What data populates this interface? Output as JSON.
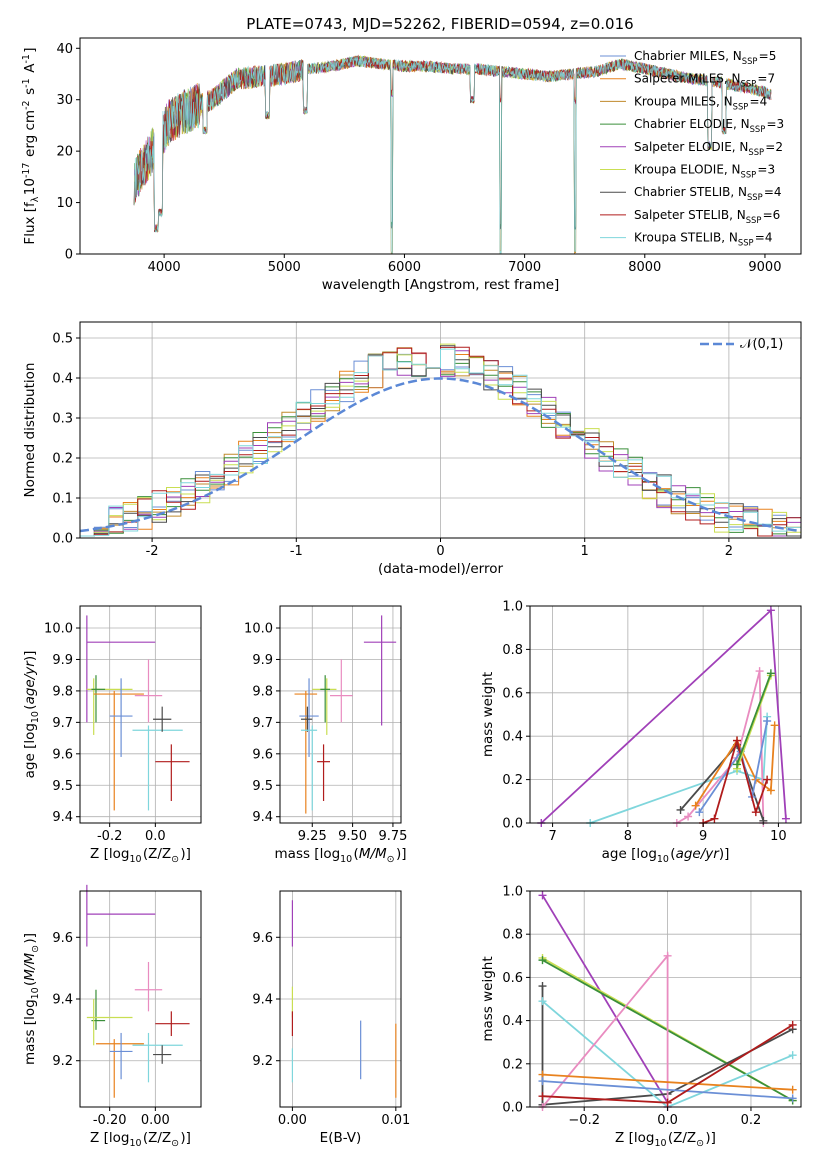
{
  "figure": {
    "title": "PLATE=0743, MJD=52262, FIBERID=0594, z=0.016"
  },
  "colors": {
    "Chabrier MILES": "#6b8fd6",
    "Salpeter MILES": "#e8821e",
    "Kroupa MILES": "#c08a2c",
    "Chabrier ELODIE": "#3a8f3a",
    "Salpeter ELODIE": "#a040b8",
    "Kroupa ELODIE": "#c9de52",
    "Chabrier STELIB": "#4a4a4a",
    "Salpeter STELIB": "#b01c1c",
    "Kroupa STELIB": "#7fd6dc",
    "Pink": "#e98cc0",
    "Gauss": "#5b88d6"
  },
  "chart_data": [
    {
      "id": "spectrum",
      "type": "line",
      "title": "PLATE=0743, MJD=52262, FIBERID=0594, z=0.016",
      "xlabel": "wavelength [Angstrom, rest frame]",
      "ylabel": "Flux [f$_\\lambda$10$^{-17}$ erg cm$^{-2}$ s$^{-1}$ A$^{-1}$]",
      "xlim": [
        3300,
        9300
      ],
      "ylim": [
        0,
        42
      ],
      "xticks": [
        4000,
        5000,
        6000,
        7000,
        8000,
        9000
      ],
      "yticks": [
        0,
        10,
        20,
        30,
        40
      ],
      "grid": false,
      "legend_position": "upper-right",
      "continuum": {
        "x": [
          3750,
          3850,
          3950,
          4050,
          4200,
          4400,
          4600,
          4800,
          5000,
          5200,
          5400,
          5600,
          5800,
          6000,
          6200,
          6400,
          6600,
          6800,
          7000,
          7200,
          7400,
          7600,
          7800,
          8000,
          8200,
          8400,
          8600,
          8800,
          9000,
          9050
        ],
        "y": [
          14,
          18,
          22,
          26,
          28,
          30,
          34,
          34.5,
          35,
          36,
          36.5,
          37.5,
          37,
          36.5,
          36.5,
          36,
          36,
          35.5,
          35,
          34.5,
          35,
          35.5,
          37,
          36,
          35,
          34,
          33.5,
          32.5,
          31.5,
          31
        ]
      },
      "absorption_dips": [
        {
          "x": 3935,
          "y": 5
        },
        {
          "x": 3970,
          "y": 8
        },
        {
          "x": 4340,
          "y": 24
        },
        {
          "x": 4860,
          "y": 27
        },
        {
          "x": 5175,
          "y": 28
        },
        {
          "x": 5895,
          "y": 0
        },
        {
          "x": 6565,
          "y": 30
        },
        {
          "x": 6800,
          "y": 0
        },
        {
          "x": 7420,
          "y": 0
        },
        {
          "x": 8542,
          "y": 21
        },
        {
          "x": 8662,
          "y": 24
        }
      ],
      "series": [
        {
          "name": "Chabrier MILES, N$_{SSP}$=5"
        },
        {
          "name": "Salpeter MILES, N$_{SSP}$=7"
        },
        {
          "name": "Kroupa MILES, N$_{SSP}$=4"
        },
        {
          "name": "Chabrier ELODIE, N$_{SSP}$=3"
        },
        {
          "name": "Salpeter ELODIE, N$_{SSP}$=2"
        },
        {
          "name": "Kroupa ELODIE, N$_{SSP}$=3"
        },
        {
          "name": "Chabrier STELIB, N$_{SSP}$=4"
        },
        {
          "name": "Salpeter STELIB, N$_{SSP}$=6"
        },
        {
          "name": "Kroupa STELIB, N$_{SSP}$=4"
        }
      ]
    },
    {
      "id": "residuals",
      "type": "line",
      "xlabel": "(data-model)/error",
      "ylabel": "Normed distribution",
      "xlim": [
        -2.5,
        2.5
      ],
      "ylim": [
        0,
        0.54
      ],
      "xticks": [
        -2,
        -1,
        0,
        1,
        2
      ],
      "yticks": [
        0.0,
        0.1,
        0.2,
        0.3,
        0.4,
        0.5
      ],
      "grid": true,
      "legend": "$\\mathcal{N}(0,1)$",
      "legend_position": "upper-right",
      "gaussian": {
        "mean": 0,
        "sigma": 1
      }
    },
    {
      "id": "age-vs-Z",
      "type": "scatter",
      "xlabel": "Z [log$_{10}$(Z/Z$_\\odot$)]",
      "ylabel": "age  [log$_{10}$($age/yr$)]",
      "xlim": [
        -0.33,
        0.2
      ],
      "ylim": [
        9.38,
        10.07
      ],
      "xticks": [
        -0.2,
        0.0
      ],
      "yticks": [
        9.4,
        9.5,
        9.6,
        9.7,
        9.8,
        9.9,
        10.0
      ],
      "grid": true,
      "points": [
        {
          "c": "Salpeter ELODIE",
          "x": -0.3,
          "y": 9.955,
          "xe": [
            -0.3,
            0.0
          ],
          "ye": [
            9.7,
            10.04
          ]
        },
        {
          "c": "Kroupa ELODIE",
          "x": -0.27,
          "y": 9.805,
          "xe": [
            -0.3,
            -0.1
          ],
          "ye": [
            9.66,
            9.84
          ]
        },
        {
          "c": "Chabrier ELODIE",
          "x": -0.26,
          "y": 9.805,
          "xe": [
            -0.28,
            -0.22
          ],
          "ye": [
            9.7,
            9.85
          ]
        },
        {
          "c": "Salpeter MILES",
          "x": -0.18,
          "y": 9.79,
          "xe": [
            -0.27,
            -0.05
          ],
          "ye": [
            9.42,
            9.8
          ]
        },
        {
          "c": "Chabrier MILES",
          "x": -0.15,
          "y": 9.72,
          "xe": [
            -0.2,
            -0.1
          ],
          "ye": [
            9.59,
            9.84
          ]
        },
        {
          "c": "Pink",
          "x": -0.03,
          "y": 9.785,
          "xe": [
            -0.09,
            0.03
          ],
          "ye": [
            9.7,
            9.9
          ]
        },
        {
          "c": "Kroupa STELIB",
          "x": -0.03,
          "y": 9.675,
          "xe": [
            -0.1,
            0.12
          ],
          "ye": [
            9.42,
            9.69
          ]
        },
        {
          "c": "Chabrier STELIB",
          "x": 0.03,
          "y": 9.71,
          "xe": [
            -0.01,
            0.07
          ],
          "ye": [
            9.67,
            9.75
          ]
        },
        {
          "c": "Salpeter STELIB",
          "x": 0.07,
          "y": 9.575,
          "xe": [
            0.0,
            0.15
          ],
          "ye": [
            9.45,
            9.63
          ]
        }
      ]
    },
    {
      "id": "age-vs-mass",
      "type": "scatter",
      "xlabel": "mass [log$_{10}$($M/M_\\odot$)]",
      "ylabel": "",
      "xlim": [
        9.05,
        9.8
      ],
      "ylim": [
        9.38,
        10.07
      ],
      "xticks": [
        9.25,
        9.5,
        9.75
      ],
      "yticks": [
        9.4,
        9.5,
        9.6,
        9.7,
        9.8,
        9.9,
        10.0
      ],
      "grid": true,
      "points": [
        {
          "c": "Salpeter ELODIE",
          "x": 9.68,
          "y": 9.955,
          "xe": [
            9.57,
            9.77
          ],
          "ye": [
            9.69,
            10.04
          ]
        },
        {
          "c": "Salpeter MILES",
          "x": 9.21,
          "y": 9.79,
          "xe": [
            9.14,
            9.28
          ],
          "ye": [
            9.41,
            9.8
          ]
        },
        {
          "c": "Kroupa ELODIE",
          "x": 9.34,
          "y": 9.805,
          "xe": [
            9.25,
            9.4
          ],
          "ye": [
            9.66,
            9.84
          ]
        },
        {
          "c": "Chabrier ELODIE",
          "x": 9.33,
          "y": 9.805,
          "xe": [
            9.3,
            9.36
          ],
          "ye": [
            9.7,
            9.85
          ]
        },
        {
          "c": "Pink",
          "x": 9.43,
          "y": 9.785,
          "xe": [
            9.36,
            9.5
          ],
          "ye": [
            9.7,
            9.9
          ]
        },
        {
          "c": "Chabrier MILES",
          "x": 9.23,
          "y": 9.72,
          "xe": [
            9.17,
            9.29
          ],
          "ye": [
            9.59,
            9.84
          ]
        },
        {
          "c": "Chabrier STELIB",
          "x": 9.22,
          "y": 9.71,
          "xe": [
            9.18,
            9.25
          ],
          "ye": [
            9.67,
            9.75
          ]
        },
        {
          "c": "Kroupa STELIB",
          "x": 9.25,
          "y": 9.675,
          "xe": [
            9.18,
            9.28
          ],
          "ye": [
            9.42,
            9.69
          ]
        },
        {
          "c": "Salpeter STELIB",
          "x": 9.32,
          "y": 9.575,
          "xe": [
            9.28,
            9.36
          ],
          "ye": [
            9.45,
            9.63
          ]
        }
      ]
    },
    {
      "id": "weight-vs-age",
      "type": "line",
      "xlabel": "age  [log$_{10}$($age/yr$)]",
      "ylabel": "mass weight",
      "xlim": [
        6.7,
        10.3
      ],
      "ylim": [
        0,
        1.0
      ],
      "xticks": [
        7,
        8,
        9,
        10
      ],
      "yticks": [
        0.0,
        0.2,
        0.4,
        0.6,
        0.8,
        1.0
      ],
      "grid": true,
      "series": [
        {
          "c": "Salpeter ELODIE",
          "x": [
            6.85,
            9.9,
            10.1
          ],
          "y": [
            0.0,
            0.98,
            0.02
          ]
        },
        {
          "c": "Kroupa STELIB",
          "x": [
            7.5,
            9.45,
            9.8,
            9.85
          ],
          "y": [
            0.0,
            0.24,
            0.2,
            0.49
          ]
        },
        {
          "c": "Pink",
          "x": [
            8.65,
            8.8,
            9.45,
            9.75,
            9.8
          ],
          "y": [
            0.0,
            0.03,
            0.3,
            0.7,
            0.0
          ]
        },
        {
          "c": "Chabrier STELIB",
          "x": [
            8.7,
            9.45,
            9.8
          ],
          "y": [
            0.06,
            0.36,
            0.01
          ]
        },
        {
          "c": "Salpeter MILES",
          "x": [
            8.9,
            9.45,
            9.7,
            9.9,
            9.95
          ],
          "y": [
            0.08,
            0.38,
            0.2,
            0.15,
            0.45
          ]
        },
        {
          "c": "Chabrier MILES",
          "x": [
            8.95,
            9.5,
            9.65,
            9.85
          ],
          "y": [
            0.05,
            0.33,
            0.12,
            0.47
          ]
        },
        {
          "c": "Salpeter STELIB",
          "x": [
            9.0,
            9.15,
            9.45,
            9.7,
            9.85
          ],
          "y": [
            0.0,
            0.02,
            0.38,
            0.05,
            0.2
          ]
        },
        {
          "c": "Kroupa ELODIE",
          "x": [
            9.45,
            9.9
          ],
          "y": [
            0.25,
            0.68
          ]
        },
        {
          "c": "Chabrier ELODIE",
          "x": [
            9.45,
            9.9
          ],
          "y": [
            0.27,
            0.69
          ]
        }
      ]
    },
    {
      "id": "mass-vs-Z",
      "type": "scatter",
      "xlabel": "Z [log$_{10}$(Z/Z$_\\odot$)]",
      "ylabel": "mass [log$_{10}$($M/M_\\odot$)]",
      "xlim": [
        -0.33,
        0.2
      ],
      "ylim": [
        9.05,
        9.75
      ],
      "xticks": [
        -0.2,
        0.0
      ],
      "yticks": [
        9.2,
        9.4,
        9.6
      ],
      "grid": true,
      "points": [
        {
          "c": "Salpeter ELODIE",
          "x": -0.3,
          "y": 9.675,
          "xe": [
            -0.3,
            0.0
          ],
          "ye": [
            9.57,
            9.77
          ]
        },
        {
          "c": "Pink",
          "x": -0.03,
          "y": 9.43,
          "xe": [
            -0.09,
            0.03
          ],
          "ye": [
            9.36,
            9.52
          ]
        },
        {
          "c": "Chabrier ELODIE",
          "x": -0.26,
          "y": 9.33,
          "xe": [
            -0.28,
            -0.22
          ],
          "ye": [
            9.3,
            9.43
          ]
        },
        {
          "c": "Kroupa ELODIE",
          "x": -0.27,
          "y": 9.34,
          "xe": [
            -0.3,
            -0.1
          ],
          "ye": [
            9.25,
            9.4
          ]
        },
        {
          "c": "Salpeter STELIB",
          "x": 0.07,
          "y": 9.32,
          "xe": [
            0.0,
            0.15
          ],
          "ye": [
            9.28,
            9.36
          ]
        },
        {
          "c": "Salpeter MILES",
          "x": -0.18,
          "y": 9.255,
          "xe": [
            -0.26,
            -0.05
          ],
          "ye": [
            9.08,
            9.27
          ]
        },
        {
          "c": "Kroupa STELIB",
          "x": -0.03,
          "y": 9.25,
          "xe": [
            -0.1,
            0.12
          ],
          "ye": [
            9.13,
            9.29
          ]
        },
        {
          "c": "Chabrier MILES",
          "x": -0.15,
          "y": 9.23,
          "xe": [
            -0.2,
            -0.1
          ],
          "ye": [
            9.14,
            9.29
          ]
        },
        {
          "c": "Chabrier STELIB",
          "x": 0.03,
          "y": 9.22,
          "xe": [
            -0.01,
            0.07
          ],
          "ye": [
            9.19,
            9.25
          ]
        }
      ]
    },
    {
      "id": "mass-vs-EBV",
      "type": "scatter",
      "xlabel": "E(B-V)",
      "ylabel": "",
      "xlim": [
        -0.0012,
        0.0105
      ],
      "ylim": [
        9.05,
        9.75
      ],
      "xticks": [
        0.0,
        0.01
      ],
      "xtick_labels": [
        "0.00",
        "0.01"
      ],
      "yticks": [
        9.2,
        9.4,
        9.6
      ],
      "grid": true,
      "points": [
        {
          "c": "Salpeter ELODIE",
          "x": 0.0,
          "y": 9.675,
          "ye": [
            9.57,
            9.72
          ]
        },
        {
          "c": "Kroupa ELODIE",
          "x": 0.0,
          "y": 9.4,
          "ye": [
            9.34,
            9.44
          ]
        },
        {
          "c": "Salpeter STELIB",
          "x": 0.0,
          "y": 9.32,
          "ye": [
            9.28,
            9.36
          ]
        },
        {
          "c": "Kroupa STELIB",
          "x": 0.0,
          "y": 9.2,
          "ye": [
            9.13,
            9.24
          ]
        },
        {
          "c": "Chabrier MILES",
          "x": 0.0066,
          "y": 9.23,
          "ye": [
            9.14,
            9.33
          ]
        },
        {
          "c": "Salpeter MILES",
          "x": 0.01,
          "y": 9.2,
          "ye": [
            9.08,
            9.32
          ]
        }
      ]
    },
    {
      "id": "weight-vs-Z",
      "type": "line",
      "xlabel": "Z [log$_{10}$(Z/Z$_\\odot$)]",
      "ylabel": "mass weight",
      "xlim": [
        -0.33,
        0.32
      ],
      "ylim": [
        0,
        1.0
      ],
      "xticks": [
        -0.2,
        0.0,
        0.2
      ],
      "yticks": [
        0.0,
        0.2,
        0.4,
        0.6,
        0.8,
        1.0
      ],
      "grid": true,
      "series": [
        {
          "c": "Salpeter ELODIE",
          "x": [
            -0.3,
            0.0
          ],
          "y": [
            0.98,
            0.02
          ]
        },
        {
          "c": "Kroupa ELODIE",
          "x": [
            -0.3,
            0.3
          ],
          "y": [
            0.69,
            0.03
          ]
        },
        {
          "c": "Chabrier ELODIE",
          "x": [
            -0.3,
            0.3
          ],
          "y": [
            0.68,
            0.03
          ]
        },
        {
          "c": "Chabrier STELIB",
          "x": [
            -0.3,
            -0.3,
            0.0,
            0.3
          ],
          "y": [
            0.56,
            0.01,
            0.06,
            0.36
          ]
        },
        {
          "c": "Kroupa STELIB",
          "x": [
            -0.3,
            0.0,
            0.3
          ],
          "y": [
            0.49,
            0.0,
            0.24
          ]
        },
        {
          "c": "Pink",
          "x": [
            -0.3,
            0.0,
            0.0
          ],
          "y": [
            0.0,
            0.7,
            0.0
          ]
        },
        {
          "c": "Salpeter MILES",
          "x": [
            -0.3,
            0.3
          ],
          "y": [
            0.15,
            0.08
          ]
        },
        {
          "c": "Chabrier MILES",
          "x": [
            -0.3,
            0.3
          ],
          "y": [
            0.12,
            0.04
          ]
        },
        {
          "c": "Salpeter STELIB",
          "x": [
            -0.3,
            0.0,
            0.3
          ],
          "y": [
            0.05,
            0.02,
            0.38
          ]
        }
      ]
    }
  ]
}
